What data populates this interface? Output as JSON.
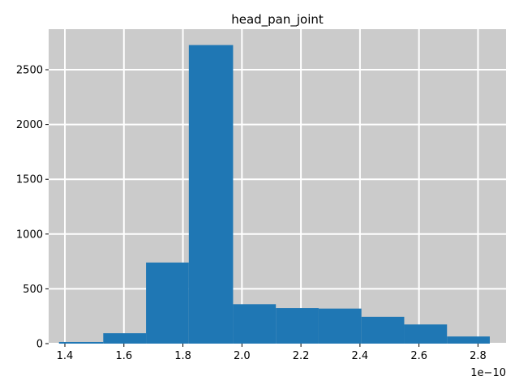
{
  "chart_data": {
    "type": "bar",
    "title": "head_pan_joint",
    "xlabel": "",
    "ylabel": "",
    "x_offset_label": "1e−10",
    "xlim": [
      1.345,
      2.895
    ],
    "ylim": [
      0,
      2870
    ],
    "x_ticks": [
      1.4,
      1.6,
      1.8,
      2.0,
      2.2,
      2.4,
      2.6,
      2.8
    ],
    "x_tick_labels": [
      "1.4",
      "1.6",
      "1.8",
      "2.0",
      "2.2",
      "2.4",
      "2.6",
      "2.8"
    ],
    "y_ticks": [
      0,
      500,
      1000,
      1500,
      2000,
      2500
    ],
    "y_tick_labels": [
      "0",
      "500",
      "1000",
      "1500",
      "2000",
      "2500"
    ],
    "grid": true,
    "bins": [
      {
        "x0": 1.38,
        "x1": 1.53,
        "count": 15
      },
      {
        "x0": 1.53,
        "x1": 1.675,
        "count": 95
      },
      {
        "x0": 1.675,
        "x1": 1.82,
        "count": 740
      },
      {
        "x0": 1.82,
        "x1": 1.97,
        "count": 2725
      },
      {
        "x0": 1.97,
        "x1": 2.115,
        "count": 360
      },
      {
        "x0": 2.115,
        "x1": 2.26,
        "count": 325
      },
      {
        "x0": 2.26,
        "x1": 2.405,
        "count": 320
      },
      {
        "x0": 2.405,
        "x1": 2.55,
        "count": 245
      },
      {
        "x0": 2.55,
        "x1": 2.695,
        "count": 175
      },
      {
        "x0": 2.695,
        "x1": 2.84,
        "count": 65
      }
    ],
    "colors": {
      "bar": "#1f77b4",
      "background": "#cbcbcb",
      "grid": "#ffffff"
    }
  }
}
